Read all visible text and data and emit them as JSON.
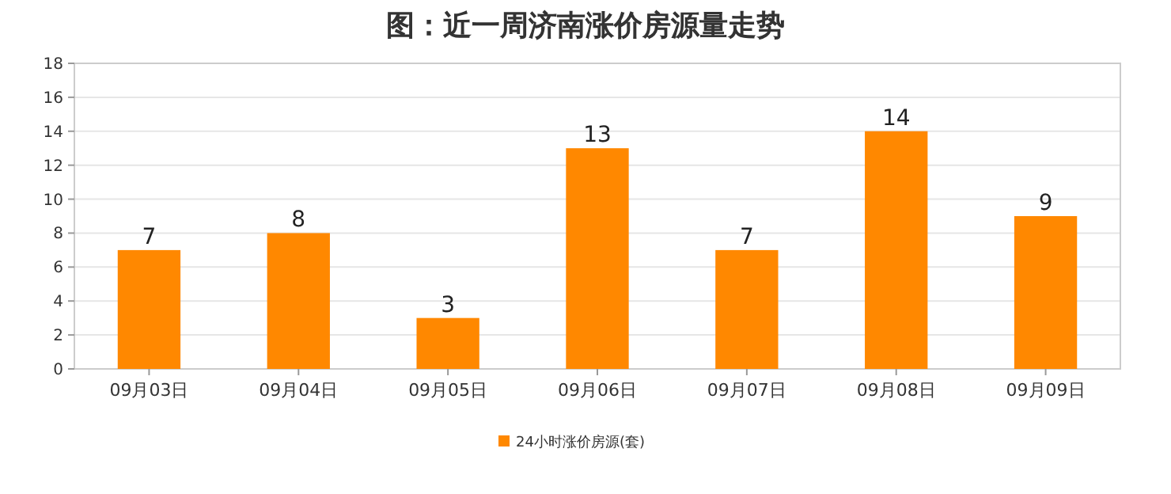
{
  "chart_data": {
    "type": "bar",
    "title": "图：近一周济南涨价房源量走势",
    "categories": [
      "09月03日",
      "09月04日",
      "09月05日",
      "09月06日",
      "09月07日",
      "09月08日",
      "09月09日"
    ],
    "series": [
      {
        "name": "24小时涨价房源(套)",
        "color": "#ff8800",
        "values": [
          7,
          8,
          3,
          13,
          7,
          14,
          9
        ]
      }
    ],
    "ylim": [
      0,
      18
    ],
    "yticks": [
      0,
      2,
      4,
      6,
      8,
      10,
      12,
      14,
      16,
      18
    ],
    "grid": "y",
    "legend": "bottom",
    "data_labels": true
  }
}
